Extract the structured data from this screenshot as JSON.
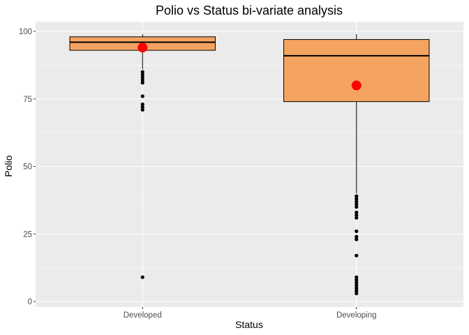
{
  "chart_data": {
    "type": "box",
    "title": "Polio vs Status bi-variate analysis",
    "xlabel": "Status",
    "ylabel": "Polio",
    "ylim": [
      -3,
      102
    ],
    "yticks": [
      0,
      25,
      50,
      75,
      100
    ],
    "grid": true,
    "legend": "none",
    "categories": [
      "Developed",
      "Developing"
    ],
    "boxes": [
      {
        "category": "Developed",
        "q1": 93,
        "median": 96,
        "q3": 98,
        "whisker_low": 86,
        "whisker_high": 99,
        "mean": 94,
        "outliers": [
          85,
          84,
          83,
          82,
          81,
          76,
          73,
          72,
          71,
          9
        ]
      },
      {
        "category": "Developing",
        "q1": 74,
        "median": 91,
        "q3": 97,
        "whisker_low": 40,
        "whisker_high": 99,
        "mean": 80,
        "outliers": [
          39,
          38,
          37,
          36,
          35,
          33,
          32,
          31,
          26,
          24,
          23,
          17,
          9,
          8,
          7,
          6,
          5,
          4,
          3
        ]
      }
    ],
    "colors": {
      "panel": "#ebebeb",
      "grid_major": "#ffffff",
      "box_fill": "#f4a460",
      "box_stroke": "#000000",
      "mean_point": "#ff0000",
      "outlier": "#000000"
    }
  }
}
